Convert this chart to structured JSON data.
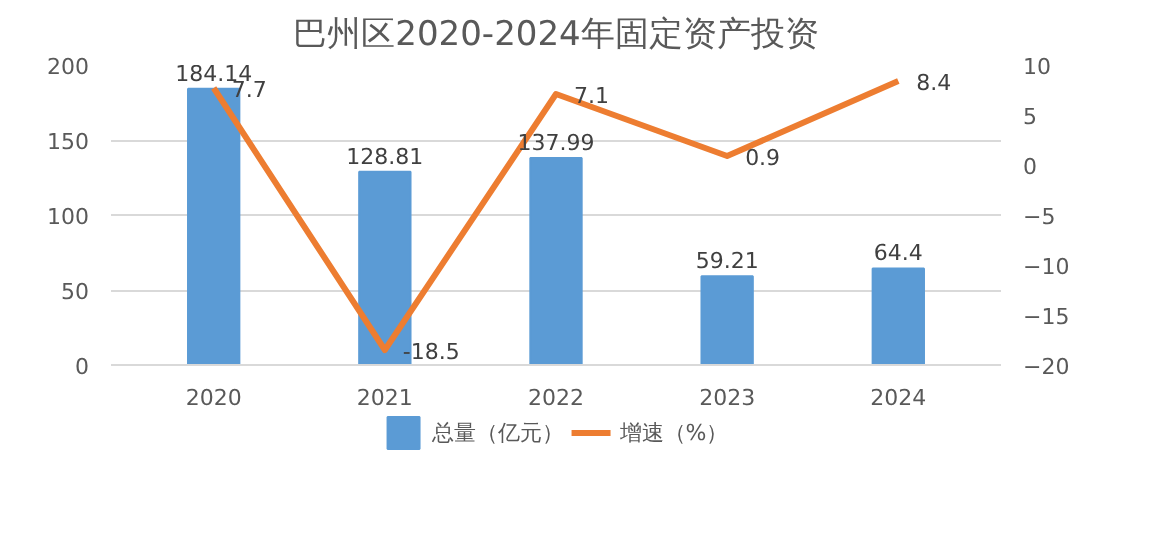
{
  "chart_data": {
    "type": "bar",
    "title": "巴州区2020-2024年固定资产投资",
    "categories": [
      "2020",
      "2021",
      "2022",
      "2023",
      "2024"
    ],
    "series": [
      {
        "name": "总量（亿元）",
        "color": "#5b9bd5",
        "values": [
          184.14,
          128.81,
          137.99,
          59.21,
          64.4
        ]
      },
      {
        "name": "增速（%）",
        "type": "line",
        "axis": "y2",
        "color": "#ed7d31",
        "values": [
          7.7,
          -18.5,
          7.1,
          0.9,
          8.4
        ]
      }
    ],
    "ylim": [
      0,
      200
    ],
    "yticks": [
      0,
      50,
      100,
      150,
      200
    ],
    "y2lim": [
      -20,
      10
    ],
    "y2ticks": [
      -20,
      -15,
      -10,
      -5,
      0,
      5,
      10
    ],
    "grid": "y",
    "legend": "bottom",
    "data_labels": true,
    "marker": "none",
    "line_style": "solid"
  }
}
